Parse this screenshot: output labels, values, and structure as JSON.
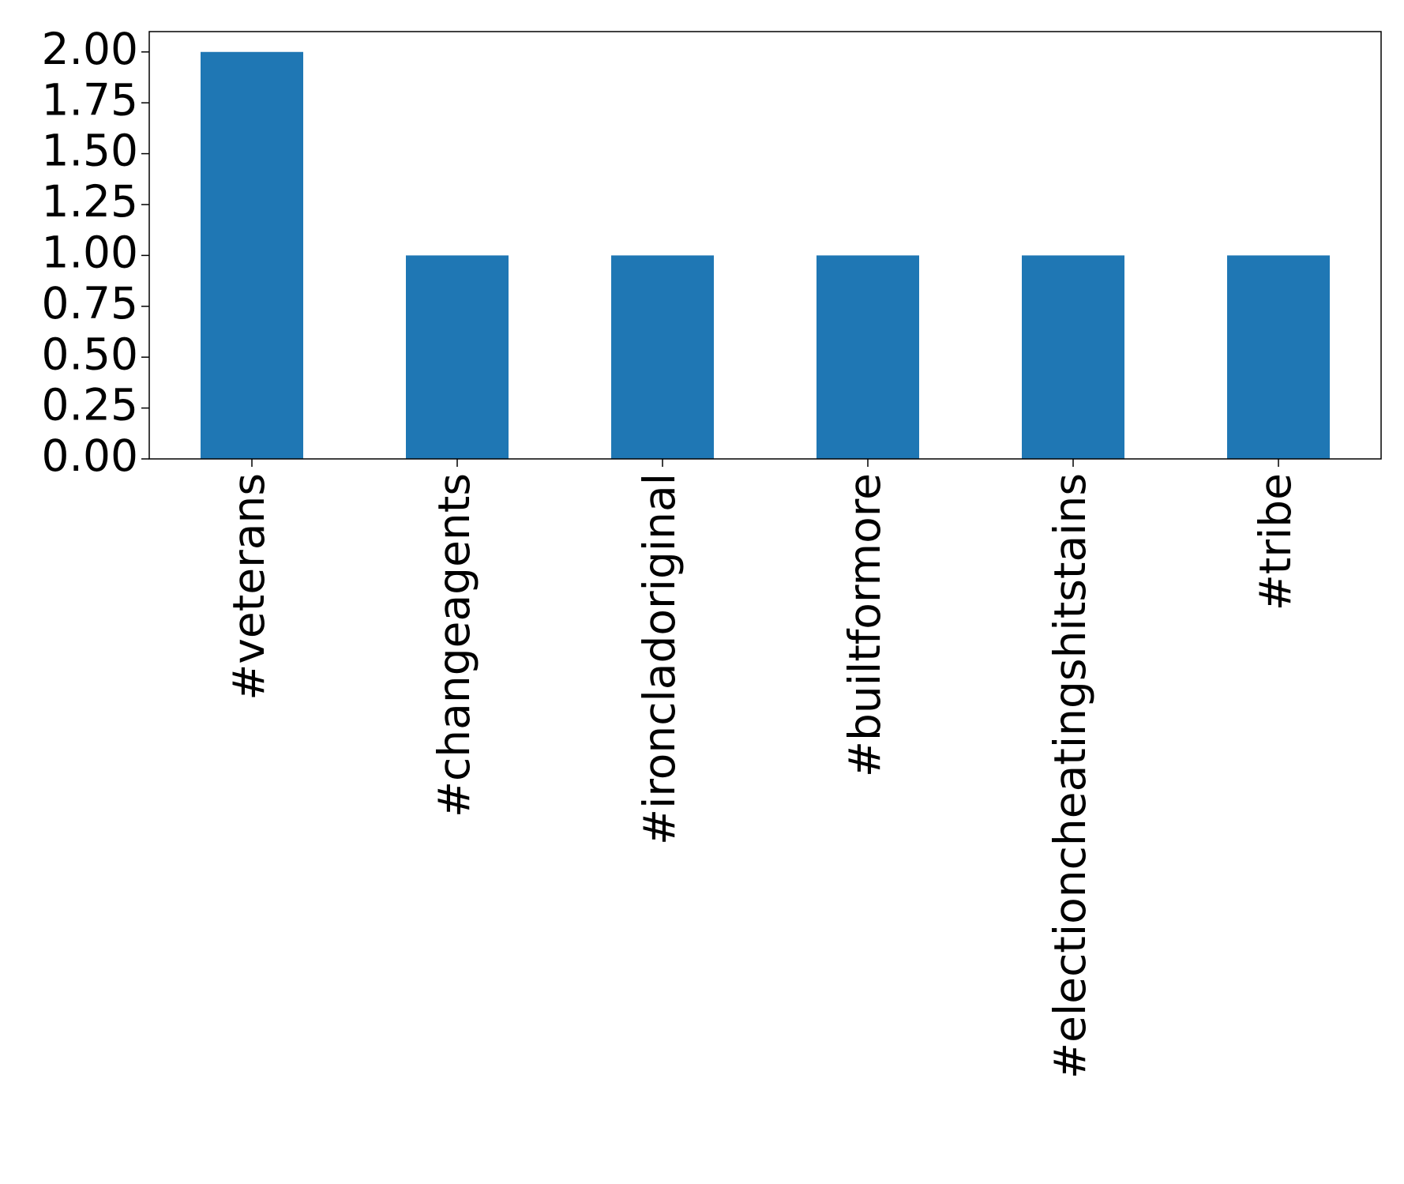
{
  "chart_data": {
    "type": "bar",
    "categories": [
      "#veterans",
      "#changeagents",
      "#ironcladoriginal",
      "#builtformore",
      "#electioncheatingshitstains",
      "#tribe"
    ],
    "values": [
      2,
      1,
      1,
      1,
      1,
      1
    ],
    "color": "#1f77b4",
    "ylim": [
      0,
      2.1
    ],
    "yticks": [
      {
        "value": 0,
        "label": "0.00"
      },
      {
        "value": 0.25,
        "label": "0.25"
      },
      {
        "value": 0.5,
        "label": "0.50"
      },
      {
        "value": 0.75,
        "label": "0.75"
      },
      {
        "value": 1,
        "label": "1.00"
      },
      {
        "value": 1.25,
        "label": "1.25"
      },
      {
        "value": 1.5,
        "label": "1.50"
      },
      {
        "value": 1.75,
        "label": "1.75"
      },
      {
        "value": 2,
        "label": "2.00"
      }
    ],
    "grid": false
  }
}
